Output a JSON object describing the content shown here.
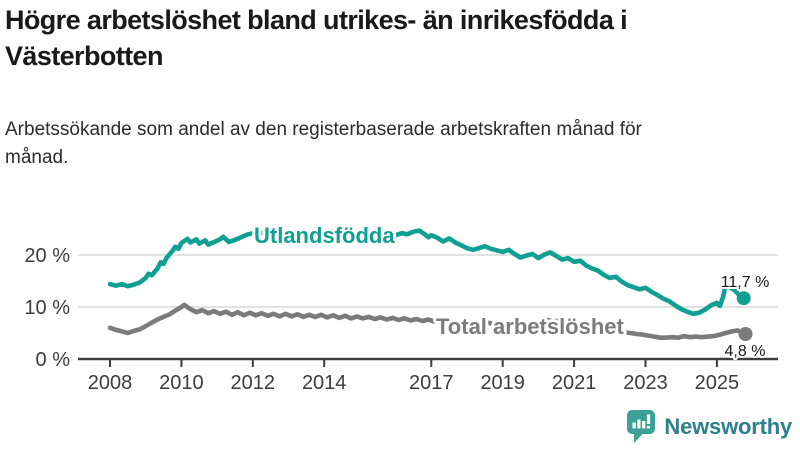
{
  "header": {
    "title": "Högre arbetslöshet bland utrikes- än inrikesfödda i Västerbotten",
    "subtitle": "Arbetssökande som andel av den registerbaserade arbetskraften månad för månad."
  },
  "chart_data": {
    "type": "line",
    "title": "Högre arbetslöshet bland utrikes- än inrikesfödda i Västerbotten",
    "xlabel": "",
    "ylabel": "",
    "x_axis": {
      "range": [
        2007.1,
        2026.7
      ],
      "ticks": [
        2008,
        2010,
        2012,
        2014,
        2017,
        2019,
        2021,
        2023,
        2025
      ],
      "tick_labels": [
        "2008",
        "2010",
        "2012",
        "2014",
        "2017",
        "2019",
        "2021",
        "2023",
        "2025"
      ]
    },
    "y_axis": {
      "range": [
        0,
        31
      ],
      "ticks": [
        0,
        10,
        20
      ],
      "tick_labels": [
        "0 %",
        "10 %",
        "20 %"
      ],
      "unit": "%"
    },
    "grid_color": "#d8d8d8",
    "axis_color": "#3d3d3d",
    "series": [
      {
        "id": "utlandsfodda",
        "name": "Utlandsfödda",
        "color": "#10a093",
        "end_label": "11,7 %",
        "end_value": 11.7,
        "points": [
          [
            2008.0,
            14.4
          ],
          [
            2008.17,
            14.1
          ],
          [
            2008.33,
            14.4
          ],
          [
            2008.5,
            14.0
          ],
          [
            2008.67,
            14.3
          ],
          [
            2008.83,
            14.7
          ],
          [
            2009.0,
            15.6
          ],
          [
            2009.08,
            16.4
          ],
          [
            2009.17,
            16.1
          ],
          [
            2009.33,
            17.4
          ],
          [
            2009.42,
            18.6
          ],
          [
            2009.5,
            18.3
          ],
          [
            2009.58,
            19.4
          ],
          [
            2009.75,
            20.8
          ],
          [
            2009.83,
            21.6
          ],
          [
            2009.92,
            21.2
          ],
          [
            2010.0,
            22.3
          ],
          [
            2010.17,
            23.1
          ],
          [
            2010.25,
            22.4
          ],
          [
            2010.42,
            23.0
          ],
          [
            2010.5,
            22.2
          ],
          [
            2010.67,
            22.8
          ],
          [
            2010.75,
            22.0
          ],
          [
            2010.92,
            22.5
          ],
          [
            2011.08,
            23.0
          ],
          [
            2011.17,
            23.5
          ],
          [
            2011.33,
            22.5
          ],
          [
            2011.5,
            22.9
          ],
          [
            2011.67,
            23.4
          ],
          [
            2011.83,
            23.9
          ],
          [
            2012.0,
            24.2
          ],
          [
            2012.17,
            24.5
          ],
          [
            2012.33,
            24.0
          ],
          [
            2012.5,
            24.4
          ],
          [
            2012.67,
            23.9
          ],
          [
            2012.83,
            24.3
          ],
          [
            2013.0,
            24.6
          ],
          [
            2013.17,
            24.1
          ],
          [
            2013.33,
            24.5
          ],
          [
            2013.5,
            24.0
          ],
          [
            2013.67,
            24.4
          ],
          [
            2013.83,
            23.9
          ],
          [
            2014.0,
            24.3
          ],
          [
            2014.17,
            23.8
          ],
          [
            2014.33,
            24.2
          ],
          [
            2014.5,
            23.7
          ],
          [
            2014.67,
            24.1
          ],
          [
            2014.83,
            23.7
          ],
          [
            2015.0,
            24.0
          ],
          [
            2015.17,
            23.6
          ],
          [
            2015.33,
            24.0
          ],
          [
            2015.5,
            23.5
          ],
          [
            2015.67,
            23.9
          ],
          [
            2015.83,
            24.2
          ],
          [
            2016.0,
            23.8
          ],
          [
            2016.17,
            24.2
          ],
          [
            2016.33,
            24.0
          ],
          [
            2016.5,
            24.5
          ],
          [
            2016.67,
            24.7
          ],
          [
            2016.83,
            23.9
          ],
          [
            2016.92,
            23.4
          ],
          [
            2017.0,
            23.8
          ],
          [
            2017.17,
            23.3
          ],
          [
            2017.33,
            22.6
          ],
          [
            2017.5,
            23.2
          ],
          [
            2017.67,
            22.4
          ],
          [
            2017.83,
            21.9
          ],
          [
            2018.0,
            21.3
          ],
          [
            2018.17,
            21.0
          ],
          [
            2018.33,
            21.3
          ],
          [
            2018.5,
            21.7
          ],
          [
            2018.67,
            21.2
          ],
          [
            2018.83,
            20.9
          ],
          [
            2019.0,
            20.6
          ],
          [
            2019.17,
            21.0
          ],
          [
            2019.33,
            20.2
          ],
          [
            2019.5,
            19.5
          ],
          [
            2019.67,
            19.9
          ],
          [
            2019.83,
            20.2
          ],
          [
            2020.0,
            19.4
          ],
          [
            2020.17,
            20.1
          ],
          [
            2020.33,
            20.5
          ],
          [
            2020.5,
            19.8
          ],
          [
            2020.67,
            19.1
          ],
          [
            2020.83,
            19.4
          ],
          [
            2021.0,
            18.7
          ],
          [
            2021.17,
            18.9
          ],
          [
            2021.33,
            18.0
          ],
          [
            2021.5,
            17.4
          ],
          [
            2021.67,
            17.0
          ],
          [
            2021.83,
            16.2
          ],
          [
            2022.0,
            15.6
          ],
          [
            2022.17,
            15.8
          ],
          [
            2022.33,
            14.9
          ],
          [
            2022.5,
            14.2
          ],
          [
            2022.67,
            13.8
          ],
          [
            2022.83,
            13.4
          ],
          [
            2023.0,
            13.7
          ],
          [
            2023.17,
            12.9
          ],
          [
            2023.33,
            12.3
          ],
          [
            2023.5,
            11.6
          ],
          [
            2023.67,
            11.1
          ],
          [
            2023.83,
            10.3
          ],
          [
            2024.0,
            9.6
          ],
          [
            2024.17,
            9.1
          ],
          [
            2024.33,
            8.7
          ],
          [
            2024.5,
            8.9
          ],
          [
            2024.67,
            9.5
          ],
          [
            2024.83,
            10.3
          ],
          [
            2025.0,
            10.8
          ],
          [
            2025.08,
            10.2
          ],
          [
            2025.17,
            11.9
          ],
          [
            2025.25,
            14.4
          ],
          [
            2025.33,
            13.9
          ],
          [
            2025.5,
            13.2
          ],
          [
            2025.58,
            12.6
          ],
          [
            2025.67,
            12.1
          ],
          [
            2025.75,
            11.7
          ]
        ]
      },
      {
        "id": "total-arbetsloshet",
        "name": "Total arbetslöshet",
        "color": "#7b7b7b",
        "end_label": "4,8 %",
        "end_value": 4.8,
        "points": [
          [
            2008.0,
            6.0
          ],
          [
            2008.17,
            5.6
          ],
          [
            2008.33,
            5.3
          ],
          [
            2008.5,
            5.0
          ],
          [
            2008.67,
            5.4
          ],
          [
            2008.83,
            5.7
          ],
          [
            2009.0,
            6.3
          ],
          [
            2009.17,
            7.0
          ],
          [
            2009.33,
            7.6
          ],
          [
            2009.5,
            8.1
          ],
          [
            2009.67,
            8.6
          ],
          [
            2009.83,
            9.3
          ],
          [
            2010.0,
            10.0
          ],
          [
            2010.08,
            10.4
          ],
          [
            2010.25,
            9.6
          ],
          [
            2010.42,
            9.0
          ],
          [
            2010.58,
            9.4
          ],
          [
            2010.75,
            8.8
          ],
          [
            2010.92,
            9.2
          ],
          [
            2011.08,
            8.7
          ],
          [
            2011.25,
            9.1
          ],
          [
            2011.42,
            8.5
          ],
          [
            2011.58,
            9.0
          ],
          [
            2011.75,
            8.4
          ],
          [
            2011.92,
            8.9
          ],
          [
            2012.08,
            8.4
          ],
          [
            2012.25,
            8.8
          ],
          [
            2012.42,
            8.3
          ],
          [
            2012.58,
            8.7
          ],
          [
            2012.75,
            8.2
          ],
          [
            2012.92,
            8.7
          ],
          [
            2013.08,
            8.2
          ],
          [
            2013.25,
            8.6
          ],
          [
            2013.42,
            8.1
          ],
          [
            2013.58,
            8.5
          ],
          [
            2013.75,
            8.1
          ],
          [
            2013.92,
            8.5
          ],
          [
            2014.08,
            8.0
          ],
          [
            2014.25,
            8.4
          ],
          [
            2014.42,
            7.9
          ],
          [
            2014.58,
            8.3
          ],
          [
            2014.75,
            7.8
          ],
          [
            2014.92,
            8.2
          ],
          [
            2015.08,
            7.8
          ],
          [
            2015.25,
            8.1
          ],
          [
            2015.42,
            7.7
          ],
          [
            2015.58,
            8.0
          ],
          [
            2015.75,
            7.6
          ],
          [
            2015.92,
            7.9
          ],
          [
            2016.08,
            7.5
          ],
          [
            2016.25,
            7.8
          ],
          [
            2016.42,
            7.4
          ],
          [
            2016.58,
            7.7
          ],
          [
            2016.75,
            7.3
          ],
          [
            2016.92,
            7.6
          ],
          [
            2017.08,
            7.2
          ],
          [
            2017.25,
            7.4
          ],
          [
            2017.42,
            7.0
          ],
          [
            2017.58,
            7.3
          ],
          [
            2017.75,
            6.9
          ],
          [
            2017.92,
            7.2
          ],
          [
            2018.08,
            6.9
          ],
          [
            2018.25,
            7.1
          ],
          [
            2018.42,
            6.8
          ],
          [
            2018.58,
            7.0
          ],
          [
            2018.75,
            6.7
          ],
          [
            2018.92,
            6.9
          ],
          [
            2019.08,
            6.6
          ],
          [
            2019.25,
            6.8
          ],
          [
            2019.42,
            6.5
          ],
          [
            2019.58,
            6.7
          ],
          [
            2019.75,
            6.4
          ],
          [
            2019.92,
            6.7
          ],
          [
            2020.08,
            6.9
          ],
          [
            2020.25,
            7.5
          ],
          [
            2020.42,
            7.2
          ],
          [
            2020.58,
            7.4
          ],
          [
            2020.75,
            7.0
          ],
          [
            2020.92,
            7.1
          ],
          [
            2021.08,
            6.8
          ],
          [
            2021.25,
            6.5
          ],
          [
            2021.42,
            6.3
          ],
          [
            2021.58,
            6.1
          ],
          [
            2021.75,
            5.9
          ],
          [
            2021.92,
            5.7
          ],
          [
            2022.08,
            5.5
          ],
          [
            2022.25,
            5.3
          ],
          [
            2022.42,
            5.1
          ],
          [
            2022.58,
            5.0
          ],
          [
            2022.75,
            4.8
          ],
          [
            2022.92,
            4.7
          ],
          [
            2023.08,
            4.5
          ],
          [
            2023.25,
            4.3
          ],
          [
            2023.42,
            4.1
          ],
          [
            2023.58,
            4.1
          ],
          [
            2023.75,
            4.2
          ],
          [
            2023.92,
            4.1
          ],
          [
            2024.08,
            4.4
          ],
          [
            2024.25,
            4.2
          ],
          [
            2024.42,
            4.3
          ],
          [
            2024.58,
            4.2
          ],
          [
            2024.75,
            4.3
          ],
          [
            2024.92,
            4.4
          ],
          [
            2025.08,
            4.7
          ],
          [
            2025.25,
            5.0
          ],
          [
            2025.42,
            5.3
          ],
          [
            2025.58,
            5.5
          ],
          [
            2025.67,
            5.2
          ],
          [
            2025.8,
            4.8
          ]
        ]
      }
    ],
    "legend_position": "inline-labels",
    "grid": "horizontal-only"
  },
  "footer": {
    "brand": "Newsworthy",
    "brand_color": "#2d7f8d",
    "logo_icon": "bar-chart-speech-bubble",
    "logo_icon_color": "#3da094"
  }
}
